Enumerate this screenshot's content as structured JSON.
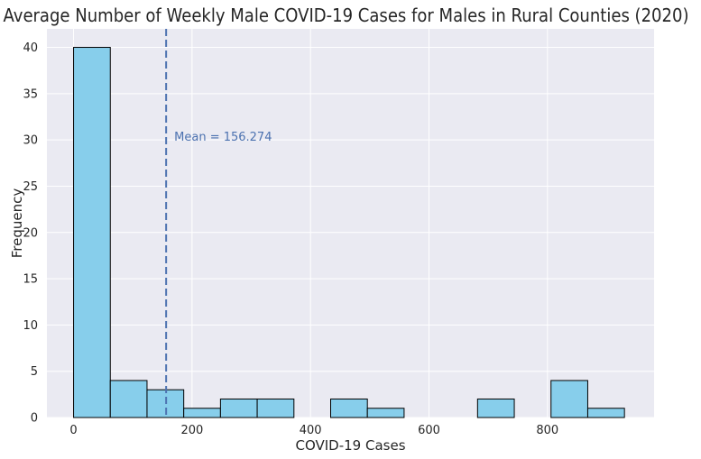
{
  "chart_data": {
    "type": "histogram",
    "title": "Average Number of Weekly Male COVID-19 Cases for Males in Rural Counties (2020)",
    "xlabel": "COVID-19 Cases",
    "ylabel": "Frequency",
    "xlim": [
      -45,
      980
    ],
    "ylim": [
      0,
      42
    ],
    "xticks": [
      0,
      200,
      400,
      600,
      800
    ],
    "yticks": [
      0,
      5,
      10,
      15,
      20,
      25,
      30,
      35,
      40
    ],
    "bin_edges": [
      0,
      62,
      124,
      186,
      248,
      310,
      372,
      434,
      496,
      558,
      620,
      682,
      744,
      806,
      868,
      930
    ],
    "values": [
      40,
      4,
      3,
      1,
      2,
      2,
      0,
      2,
      1,
      0,
      0,
      2,
      0,
      4,
      1
    ],
    "mean": 156.274,
    "annotation": "Mean = 156.274",
    "grid": true,
    "colors": {
      "bar_fill": "#87ceeb",
      "bar_edge": "#000000",
      "mean_line": "#4c72b0",
      "plot_background": "#eaeaf2",
      "grid": "#ffffff"
    }
  }
}
